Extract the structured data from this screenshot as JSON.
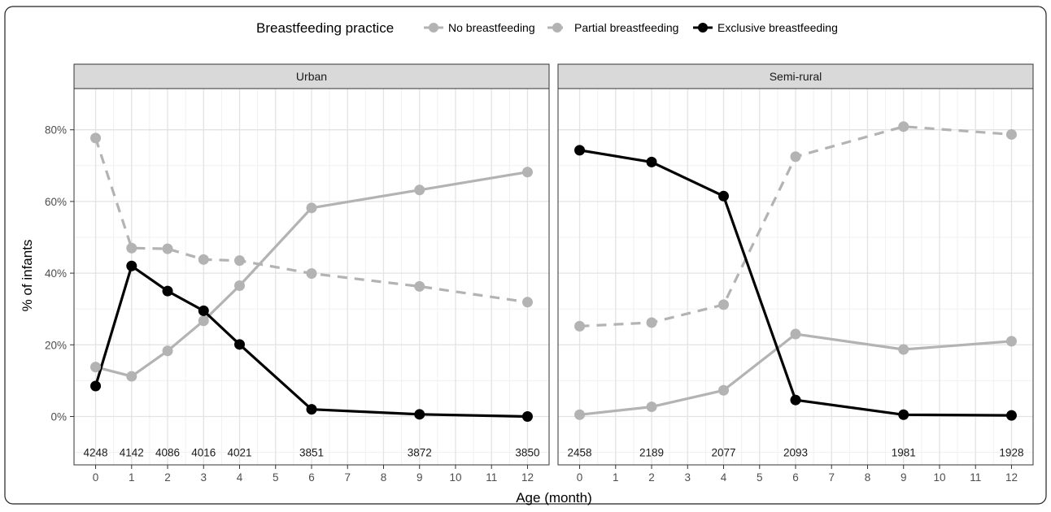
{
  "chart_data": {
    "type": "line",
    "legend": {
      "title": "Breastfeeding practice",
      "placement": "top",
      "entries": [
        {
          "label": "No breastfeeding",
          "color": "#b3b3b3",
          "dash": "solid"
        },
        {
          "label": "Partial breastfeeding",
          "color": "#b3b3b3",
          "dash": "dashed"
        },
        {
          "label": "Exclusive breastfeeding",
          "color": "#000000",
          "dash": "solid"
        }
      ]
    },
    "ylabel": "% of infants",
    "xlabel": "Age (month)",
    "ylim": [
      -13.5,
      91.5
    ],
    "xlim": [
      -0.6,
      12.6
    ],
    "yticks": [
      0,
      20,
      40,
      60,
      80
    ],
    "ytick_labels": [
      "0%",
      "20%",
      "40%",
      "60%",
      "80%"
    ],
    "xticks": [
      0,
      1,
      2,
      3,
      4,
      5,
      6,
      7,
      8,
      9,
      10,
      11,
      12
    ],
    "xtick_labels": [
      "0",
      "1",
      "2",
      "3",
      "4",
      "5",
      "6",
      "7",
      "8",
      "9",
      "10",
      "11",
      "12"
    ],
    "grid": true,
    "panels": [
      {
        "title": "Urban",
        "series": [
          {
            "name": "No breastfeeding",
            "x": [
              0,
              1,
              2,
              3,
              4,
              6,
              9,
              12
            ],
            "y": [
              13.8,
              11.2,
              18.3,
              26.7,
              36.5,
              58.2,
              63.2,
              68.2
            ]
          },
          {
            "name": "Partial breastfeeding",
            "x": [
              0,
              1,
              2,
              3,
              4,
              6,
              9,
              12
            ],
            "y": [
              77.7,
              47.0,
              46.8,
              43.8,
              43.5,
              39.9,
              36.3,
              31.9
            ]
          },
          {
            "name": "Exclusive breastfeeding",
            "x": [
              0,
              1,
              2,
              3,
              4,
              6,
              9,
              12
            ],
            "y": [
              8.5,
              42.0,
              35.0,
              29.5,
              20.1,
              2.0,
              0.6,
              0.0
            ]
          }
        ],
        "counts": [
          {
            "x": 0,
            "label": "4248"
          },
          {
            "x": 1,
            "label": "4142"
          },
          {
            "x": 2,
            "label": "4086"
          },
          {
            "x": 3,
            "label": "4016"
          },
          {
            "x": 4,
            "label": "4021"
          },
          {
            "x": 6,
            "label": "3851"
          },
          {
            "x": 9,
            "label": "3872"
          },
          {
            "x": 12,
            "label": "3850"
          }
        ]
      },
      {
        "title": "Semi-rural",
        "series": [
          {
            "name": "No breastfeeding",
            "x": [
              0,
              2,
              4,
              6,
              9,
              12
            ],
            "y": [
              0.5,
              2.7,
              7.3,
              23.0,
              18.7,
              21.0
            ]
          },
          {
            "name": "Partial breastfeeding",
            "x": [
              0,
              2,
              4,
              6,
              9,
              12
            ],
            "y": [
              25.2,
              26.2,
              31.2,
              72.5,
              80.9,
              78.7
            ]
          },
          {
            "name": "Exclusive breastfeeding",
            "x": [
              0,
              2,
              4,
              6,
              9,
              12
            ],
            "y": [
              74.3,
              71.0,
              61.5,
              4.6,
              0.5,
              0.3
            ]
          }
        ],
        "counts": [
          {
            "x": 0,
            "label": "2458"
          },
          {
            "x": 2,
            "label": "2189"
          },
          {
            "x": 4,
            "label": "2077"
          },
          {
            "x": 6,
            "label": "2093"
          },
          {
            "x": 9,
            "label": "1981"
          },
          {
            "x": 12,
            "label": "1928"
          }
        ]
      }
    ]
  }
}
